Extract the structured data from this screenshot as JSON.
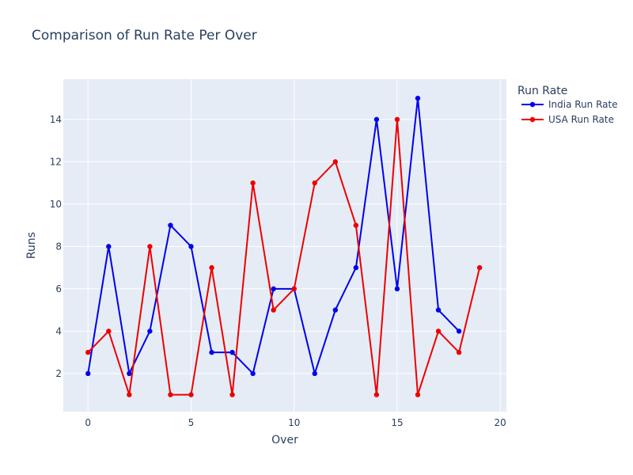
{
  "chart_data": {
    "type": "line",
    "title": "Comparison of Run Rate Per Over",
    "xlabel": "Over",
    "ylabel": "Runs",
    "xlim": [
      -1.2,
      20.3
    ],
    "ylim": [
      0.2,
      15.9
    ],
    "x_ticks": [
      0,
      5,
      10,
      15,
      20
    ],
    "y_ticks": [
      2,
      4,
      6,
      8,
      10,
      12,
      14
    ],
    "grid": true,
    "legend_title": "Run Rate",
    "legend_position": "top-right",
    "series": [
      {
        "name": "India Run Rate",
        "color": "#0000ee",
        "x": [
          0,
          1,
          2,
          3,
          4,
          5,
          6,
          7,
          8,
          9,
          10,
          11,
          12,
          13,
          14,
          15,
          16,
          17,
          18
        ],
        "values": [
          2,
          8,
          2,
          4,
          9,
          8,
          3,
          3,
          2,
          6,
          6,
          2,
          5,
          7,
          14,
          6,
          15,
          5,
          4
        ]
      },
      {
        "name": "USA Run Rate",
        "color": "#ee0000",
        "x": [
          0,
          1,
          2,
          3,
          4,
          5,
          6,
          7,
          8,
          9,
          10,
          11,
          12,
          13,
          14,
          15,
          16,
          17,
          18,
          19
        ],
        "values": [
          3,
          4,
          1,
          8,
          1,
          1,
          7,
          1,
          11,
          5,
          6,
          11,
          12,
          9,
          1,
          14,
          1,
          4,
          3,
          7
        ]
      }
    ]
  }
}
